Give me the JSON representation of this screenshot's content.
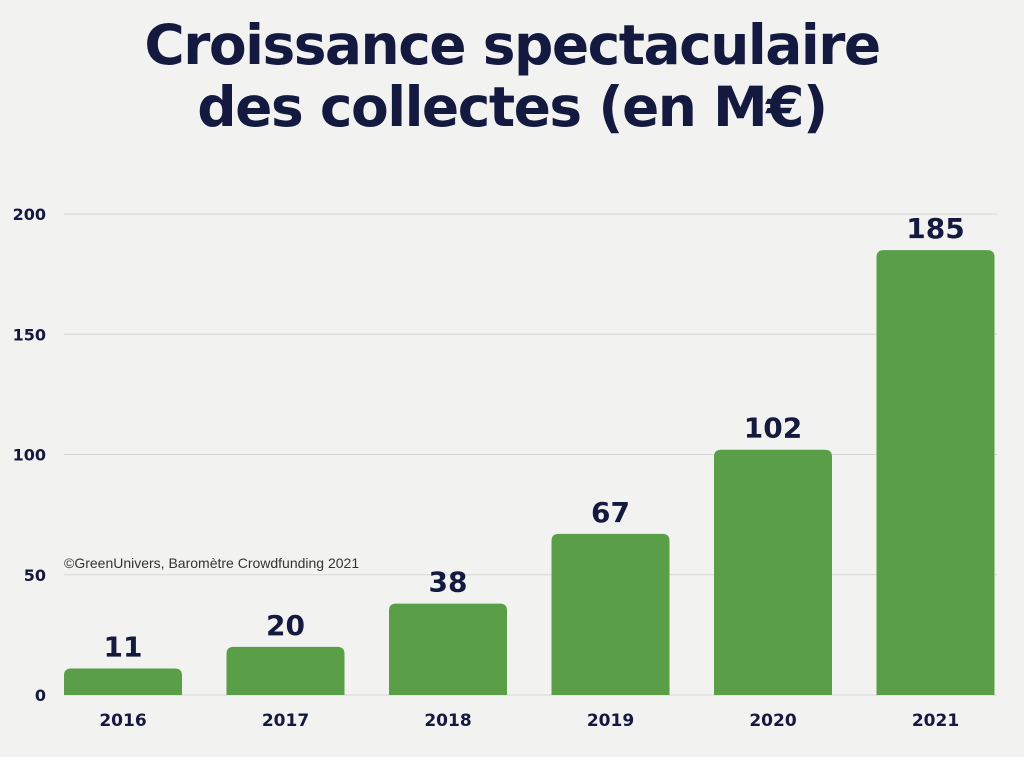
{
  "title_line1": "Croissance spectaculaire",
  "title_line2": "des collectes (en M€)",
  "credit": "©GreenUnivers, Baromètre Crowdfunding 2021",
  "colors": {
    "bar": "#5a9e48",
    "text": "#14193f",
    "grid": "#d6d6d6",
    "background": "#f2f2f1"
  },
  "chart_data": {
    "type": "bar",
    "categories": [
      "2016",
      "2017",
      "2018",
      "2019",
      "2020",
      "2021"
    ],
    "values": [
      11,
      20,
      38,
      67,
      102,
      185
    ],
    "data_labels": [
      "11",
      "20",
      "38",
      "67",
      "102",
      "185"
    ],
    "title": "Croissance spectaculaire des collectes (en M€)",
    "xlabel": "",
    "ylabel": "",
    "ylim": [
      0,
      200
    ],
    "yticks": [
      0,
      50,
      100,
      150,
      200
    ],
    "ytick_labels": [
      "0",
      "50",
      "100",
      "150",
      "200"
    ],
    "grid": true,
    "legend": "none"
  }
}
